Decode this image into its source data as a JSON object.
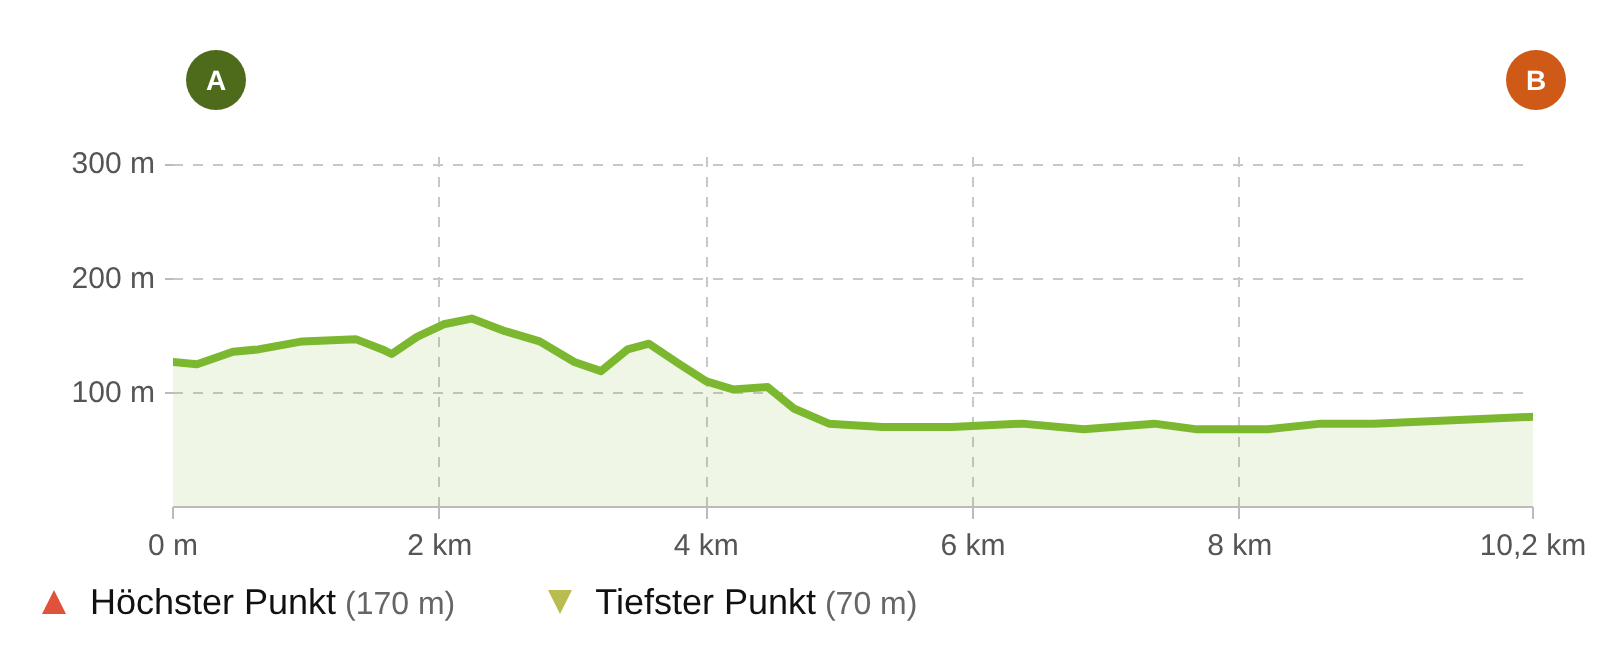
{
  "chart_data": {
    "type": "area",
    "color": "#7cb82f",
    "x": [
      0,
      0.18,
      0.45,
      0.64,
      0.97,
      1.37,
      1.57,
      1.64,
      1.83,
      2.03,
      2.24,
      2.49,
      2.75,
      3.01,
      3.21,
      3.41,
      3.57,
      3.8,
      4.0,
      4.2,
      4.46,
      4.66,
      4.92,
      5.32,
      5.84,
      6.37,
      6.83,
      7.36,
      7.68,
      8.21,
      8.61,
      9.0,
      10.2
    ],
    "values": [
      127,
      125,
      136,
      138,
      145,
      147,
      138,
      134,
      149,
      160,
      165,
      154,
      145,
      127,
      119,
      138,
      143,
      125,
      110,
      103,
      105,
      86,
      73,
      70,
      70,
      73,
      68,
      73,
      68,
      68,
      73,
      73,
      79
    ],
    "xlim": [
      0,
      10.2
    ],
    "ylim": [
      0,
      310
    ],
    "xticks": [
      {
        "value": 0,
        "label": "0 m"
      },
      {
        "value": 2,
        "label": "2 km"
      },
      {
        "value": 4,
        "label": "4 km"
      },
      {
        "value": 6,
        "label": "6 km"
      },
      {
        "value": 8,
        "label": "8 km"
      },
      {
        "value": 10.2,
        "label": "10,2 km"
      }
    ],
    "yticks": [
      {
        "value": 100,
        "label": "100 m"
      },
      {
        "value": 200,
        "label": "200 m"
      },
      {
        "value": 300,
        "label": "300 m"
      }
    ],
    "grid": true,
    "line_style": "solid",
    "annotations": [
      "A",
      "B",
      "Höchster Punkt (170 m)",
      "Tiefster Punkt (70 m)"
    ]
  }
}
